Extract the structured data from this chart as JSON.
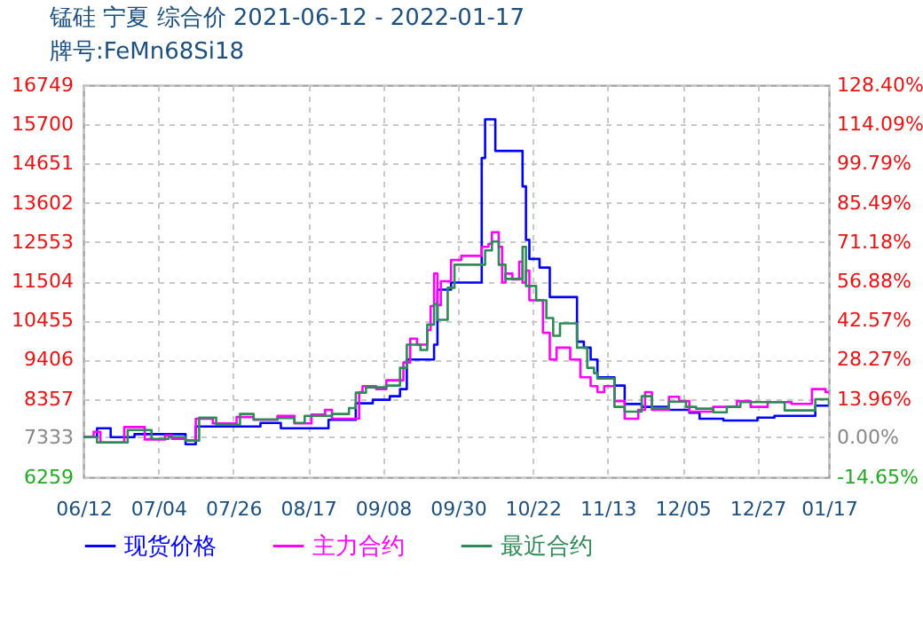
{
  "chart_data": {
    "type": "step",
    "title": "锰硅 宁夏 综合价 2021-06-12 - 2022-01-17",
    "subtitle": "牌号:FeMn68Si18",
    "xlim": [
      "2021-06-12",
      "2022-01-17"
    ],
    "xticks": [
      {
        "value": "2021-06-12",
        "label": "06/12"
      },
      {
        "value": "2021-07-04",
        "label": "07/04"
      },
      {
        "value": "2021-07-26",
        "label": "07/26"
      },
      {
        "value": "2021-08-17",
        "label": "08/17"
      },
      {
        "value": "2021-09-08",
        "label": "09/08"
      },
      {
        "value": "2021-09-30",
        "label": "09/30"
      },
      {
        "value": "2021-10-22",
        "label": "10/22"
      },
      {
        "value": "2021-11-13",
        "label": "11/13"
      },
      {
        "value": "2021-12-05",
        "label": "12/05"
      },
      {
        "value": "2021-12-27",
        "label": "12/27"
      },
      {
        "value": "2022-01-17",
        "label": "01/17"
      }
    ],
    "ylim": [
      6259,
      16749
    ],
    "yticks": [
      6259,
      7333,
      8357,
      9406,
      10455,
      11504,
      12553,
      13602,
      14651,
      15700,
      16749
    ],
    "y2lim": [
      -14.65,
      128.4
    ],
    "y2ticks": [
      {
        "value": -14.65,
        "label": "-14.65%"
      },
      {
        "value": 0,
        "label": "0.00%"
      },
      {
        "value": 13.96,
        "label": "13.96%"
      },
      {
        "value": 28.27,
        "label": "28.27%"
      },
      {
        "value": 42.57,
        "label": "42.57%"
      },
      {
        "value": 56.88,
        "label": "56.88%"
      },
      {
        "value": 71.18,
        "label": "71.18%"
      },
      {
        "value": 85.49,
        "label": "85.49%"
      },
      {
        "value": 99.79,
        "label": "99.79%"
      },
      {
        "value": 114.09,
        "label": "114.09%"
      },
      {
        "value": 128.4,
        "label": "128.40%"
      }
    ],
    "grid": true,
    "legend": "bottom",
    "line_style": "solid",
    "series": [
      {
        "name": "现货价格",
        "color": "#0000ff",
        "x": [
          "2021-06-12",
          "2021-06-16",
          "2021-06-20",
          "2021-06-27",
          "2021-07-12",
          "2021-07-15",
          "2021-08-03",
          "2021-08-09",
          "2021-08-23",
          "2021-08-31",
          "2021-09-05",
          "2021-09-10",
          "2021-09-13",
          "2021-09-15",
          "2021-09-23",
          "2021-09-24",
          "2021-09-28",
          "2021-10-07",
          "2021-10-08",
          "2021-10-11",
          "2021-10-19",
          "2021-10-20",
          "2021-10-21",
          "2021-10-24",
          "2021-10-27",
          "2021-11-04",
          "2021-11-06",
          "2021-11-08",
          "2021-11-10",
          "2021-11-15",
          "2021-11-18",
          "2021-11-23",
          "2021-12-01",
          "2021-12-07",
          "2021-12-10",
          "2021-12-17",
          "2021-12-27",
          "2022-01-01",
          "2022-01-13",
          "2022-01-17"
        ],
        "values": [
          7333,
          7570,
          7333,
          7413,
          7143,
          7618,
          7713,
          7570,
          7794,
          8237,
          8332,
          8427,
          8618,
          9410,
          9807,
          11280,
          11470,
          14800,
          15835,
          14990,
          14040,
          12610,
          12100,
          11870,
          11080,
          9887,
          9726,
          9410,
          8936,
          8712,
          8220,
          8142,
          8063,
          7985,
          7825,
          7777,
          7856,
          7904,
          8174,
          8174
        ]
      },
      {
        "name": "主力合约",
        "color": "#ff00ff",
        "x": [
          "2021-06-12",
          "2021-06-15",
          "2021-06-17",
          "2021-06-24",
          "2021-06-30",
          "2021-07-06",
          "2021-07-08",
          "2021-07-12",
          "2021-07-15",
          "2021-07-20",
          "2021-07-27",
          "2021-08-01",
          "2021-08-08",
          "2021-08-13",
          "2021-08-18",
          "2021-08-22",
          "2021-08-24",
          "2021-09-01",
          "2021-09-02",
          "2021-09-06",
          "2021-09-09",
          "2021-09-14",
          "2021-09-16",
          "2021-09-18",
          "2021-09-21",
          "2021-09-22",
          "2021-09-23",
          "2021-09-24",
          "2021-09-25",
          "2021-09-28",
          "2021-10-01",
          "2021-10-07",
          "2021-10-09",
          "2021-10-10",
          "2021-10-12",
          "2021-10-13",
          "2021-10-14",
          "2021-10-16",
          "2021-10-18",
          "2021-10-19",
          "2021-10-20",
          "2021-10-21",
          "2021-10-25",
          "2021-10-27",
          "2021-10-29",
          "2021-11-02",
          "2021-11-05",
          "2021-11-08",
          "2021-11-10",
          "2021-11-12",
          "2021-11-15",
          "2021-11-18",
          "2021-11-22",
          "2021-11-24",
          "2021-11-26",
          "2021-12-01",
          "2021-12-04",
          "2021-12-07",
          "2021-12-14",
          "2021-12-21",
          "2021-12-25",
          "2021-12-30",
          "2022-01-06",
          "2022-01-12",
          "2022-01-16",
          "2022-01-17"
        ],
        "values": [
          7333,
          7476,
          7190,
          7604,
          7270,
          7380,
          7285,
          7240,
          7825,
          7700,
          7870,
          7794,
          7904,
          7700,
          7937,
          8063,
          7825,
          8537,
          8697,
          8618,
          8855,
          9330,
          9966,
          9807,
          10200,
          10840,
          11708,
          10866,
          11504,
          12075,
          12184,
          12422,
          12500,
          12817,
          12422,
          11470,
          11708,
          11550,
          12027,
          11470,
          11790,
          10995,
          10125,
          9410,
          9726,
          9410,
          8936,
          8697,
          8537,
          8697,
          8298,
          7825,
          8063,
          8537,
          8063,
          8413,
          8298,
          8015,
          8142,
          8298,
          8142,
          8270,
          8222,
          8618,
          8537,
          8537
        ]
      },
      {
        "name": "最近合约",
        "color": "#2e8b57",
        "x": [
          "2021-06-12",
          "2021-06-16",
          "2021-06-25",
          "2021-07-02",
          "2021-07-07",
          "2021-07-12",
          "2021-07-16",
          "2021-07-21",
          "2021-07-28",
          "2021-08-01",
          "2021-08-08",
          "2021-08-13",
          "2021-08-16",
          "2021-08-24",
          "2021-08-29",
          "2021-08-31",
          "2021-09-03",
          "2021-09-09",
          "2021-09-13",
          "2021-09-15",
          "2021-09-19",
          "2021-09-21",
          "2021-09-23",
          "2021-09-24",
          "2021-09-27",
          "2021-09-29",
          "2021-10-08",
          "2021-10-10",
          "2021-10-12",
          "2021-10-14",
          "2021-10-19",
          "2021-10-20",
          "2021-10-23",
          "2021-10-26",
          "2021-10-28",
          "2021-10-30",
          "2021-11-04",
          "2021-11-07",
          "2021-11-09",
          "2021-11-10",
          "2021-11-15",
          "2021-11-18",
          "2021-11-23",
          "2021-11-26",
          "2021-12-01",
          "2021-12-06",
          "2021-12-09",
          "2021-12-14",
          "2021-12-18",
          "2021-12-22",
          "2022-01-04",
          "2022-01-13",
          "2022-01-17"
        ],
        "values": [
          7333,
          7190,
          7523,
          7285,
          7333,
          7240,
          7856,
          7666,
          7952,
          7809,
          7842,
          7714,
          7904,
          7952,
          8109,
          8522,
          8665,
          8712,
          9188,
          9807,
          9663,
          10343,
          10900,
          10472,
          11328,
          11946,
          12327,
          12565,
          11946,
          11566,
          12422,
          11376,
          10995,
          10519,
          10044,
          10377,
          9726,
          9188,
          9045,
          8902,
          8142,
          8015,
          8427,
          8109,
          8284,
          8142,
          8095,
          7999,
          8142,
          8270,
          8047,
          8346,
          8142
        ]
      }
    ]
  }
}
